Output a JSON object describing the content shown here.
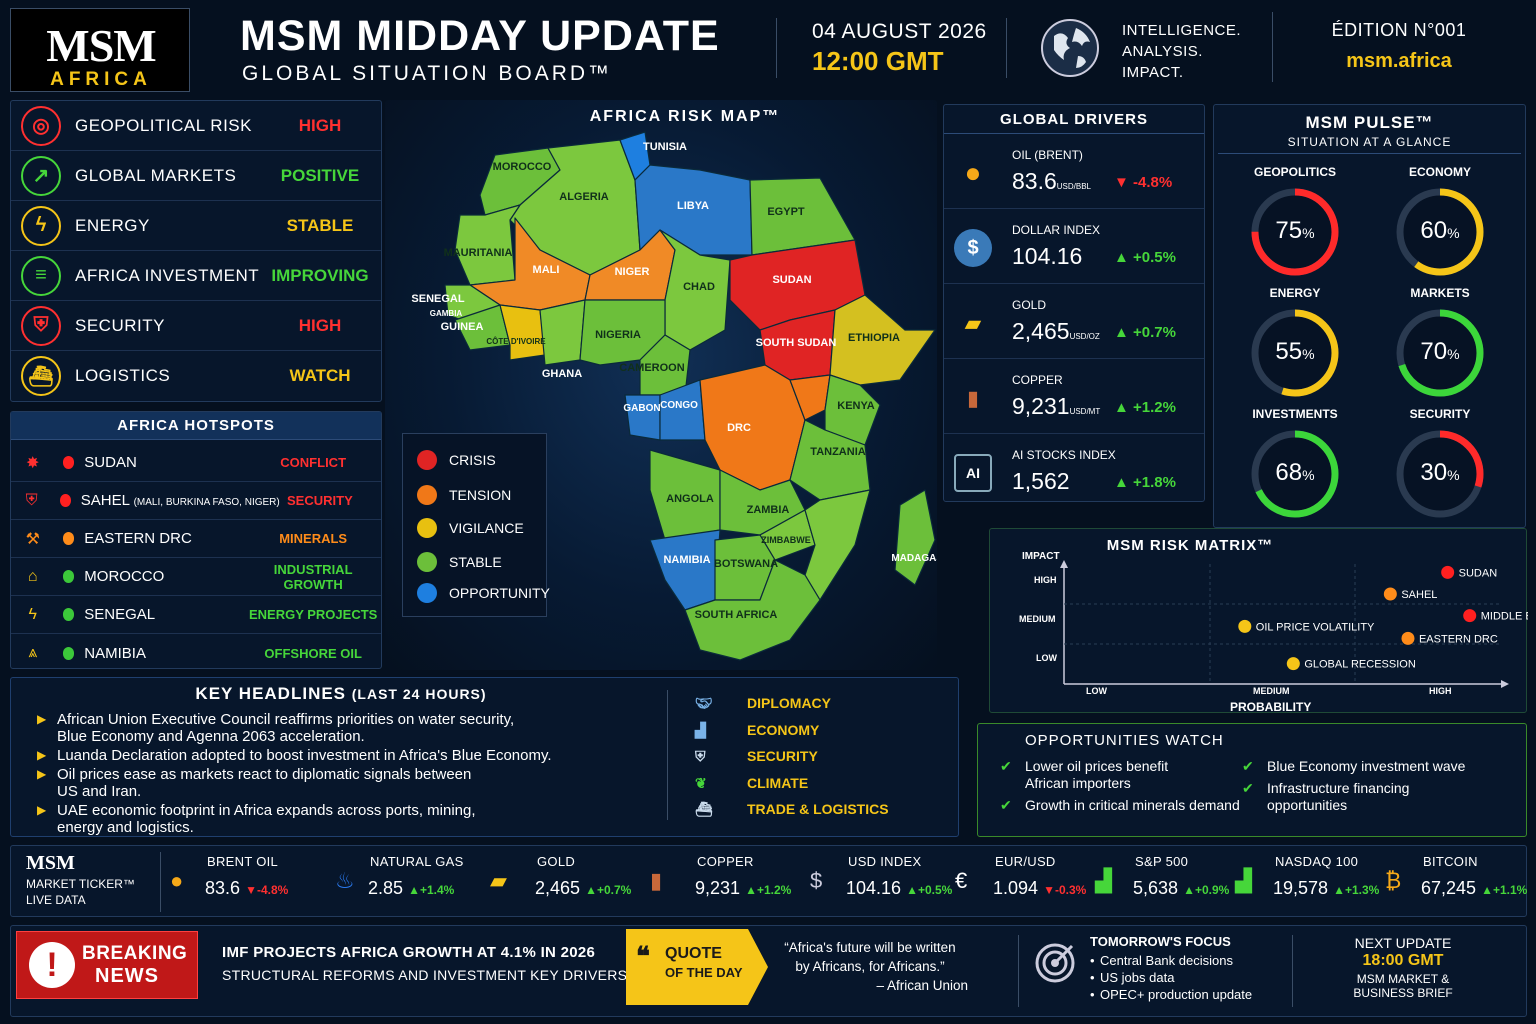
{
  "header": {
    "logo_main": "MSM",
    "logo_sub": "AFRICA",
    "title": "MSM MIDDAY UPDATE",
    "subtitle": "GLOBAL SITUATION BOARD™",
    "date": "04 AUGUST 2026",
    "time": "12:00 GMT",
    "tagline": [
      "INTELLIGENCE.",
      "ANALYSIS.",
      "IMPACT."
    ],
    "edition": "ÉDITION N°001",
    "site": "msm.africa"
  },
  "status_board": [
    {
      "label": "GEOPOLITICAL RISK",
      "value": "HIGH",
      "color": "#ff3030",
      "icon": "globe-icon"
    },
    {
      "label": "GLOBAL MARKETS",
      "value": "POSITIVE",
      "color": "#46d63a",
      "icon": "trend-icon"
    },
    {
      "label": "ENERGY",
      "value": "STABLE",
      "color": "#f5c518",
      "icon": "lightning-icon"
    },
    {
      "label": "AFRICA INVESTMENT",
      "value": "IMPROVING",
      "color": "#46d63a",
      "icon": "coins-icon"
    },
    {
      "label": "SECURITY",
      "value": "HIGH",
      "color": "#ff3030",
      "icon": "shield-icon"
    },
    {
      "label": "LOGISTICS",
      "value": "WATCH",
      "color": "#f5c518",
      "icon": "ship-icon"
    }
  ],
  "hotspots": {
    "title": "AFRICA HOTSPOTS",
    "items": [
      {
        "name": "SUDAN",
        "note": "",
        "tag": "CONFLICT",
        "color": "#ff3030",
        "icon": "explosion-icon"
      },
      {
        "name": "SAHEL",
        "note": "(MALI, BURKINA FASO, NIGER)",
        "tag": "SECURITY",
        "color": "#ff3030",
        "icon": "shield-icon"
      },
      {
        "name": "EASTERN DRC",
        "note": "",
        "tag": "MINERALS",
        "color": "#ff8c1a",
        "icon": "pickaxe-icon"
      },
      {
        "name": "MOROCCO",
        "note": "",
        "tag": "INDUSTRIAL GROWTH",
        "color": "#46d63a",
        "icon": "factory-icon"
      },
      {
        "name": "SENEGAL",
        "note": "",
        "tag": "ENERGY PROJECTS",
        "color": "#46d63a",
        "icon": "lightning-icon"
      },
      {
        "name": "NAMIBIA",
        "note": "",
        "tag": "OFFSHORE OIL",
        "color": "#46d63a",
        "icon": "oil-rig-icon"
      }
    ]
  },
  "map": {
    "title": "AFRICA RISK MAP™",
    "countries": [
      "TUNISIA",
      "MOROCCO",
      "ALGERIA",
      "LIBYA",
      "EGYPT",
      "MAURITANIA",
      "MALI",
      "NIGER",
      "CHAD",
      "SUDAN",
      "SENEGAL",
      "GAMBIA",
      "GUINEA",
      "CÔTE D'IVOIRE",
      "NIGERIA",
      "ETHIOPIA",
      "SOUTH SUDAN",
      "GHANA",
      "CAMEROON",
      "GABON",
      "CONGO",
      "DRC",
      "KENYA",
      "TANZANIA",
      "ANGOLA",
      "ZAMBIA",
      "ZIMBABWE",
      "NAMIBIA",
      "BOTSWANA",
      "MADAGASCAR",
      "SOUTH AFRICA"
    ],
    "legend": [
      {
        "label": "CRISIS",
        "color": "#e02424"
      },
      {
        "label": "TENSION",
        "color": "#f07818"
      },
      {
        "label": "VIGILANCE",
        "color": "#e8c010"
      },
      {
        "label": "STABLE",
        "color": "#6cbf3a"
      },
      {
        "label": "OPPORTUNITY",
        "color": "#1e7fe0"
      }
    ]
  },
  "drivers": {
    "title": "GLOBAL DRIVERS",
    "items": [
      {
        "name": "OIL (BRENT)",
        "value": "83.6",
        "unit": "USD/BBL",
        "change": "-4.8%",
        "dir": "down",
        "icon": "oil-drop-icon"
      },
      {
        "name": "DOLLAR INDEX",
        "value": "104.16",
        "unit": "",
        "change": "+0.5%",
        "dir": "up",
        "icon": "dollar-icon"
      },
      {
        "name": "GOLD",
        "value": "2,465",
        "unit": "USD/OZ",
        "change": "+0.7%",
        "dir": "up",
        "icon": "gold-bars-icon"
      },
      {
        "name": "COPPER",
        "value": "9,231",
        "unit": "USD/MT",
        "change": "+1.2%",
        "dir": "up",
        "icon": "copper-icon"
      },
      {
        "name": "AI STOCKS INDEX",
        "value": "1,562",
        "unit": "",
        "change": "+1.8%",
        "dir": "up",
        "icon": "ai-chip-icon"
      }
    ]
  },
  "pulse": {
    "title": "MSM PULSE™",
    "subtitle": "SITUATION AT A GLANCE",
    "gauges": [
      {
        "label": "GEOPOLITICS",
        "value": 75,
        "color": "#ff2a2a"
      },
      {
        "label": "ECONOMY",
        "value": 60,
        "color": "#f5c518"
      },
      {
        "label": "ENERGY",
        "value": 55,
        "color": "#f5c518"
      },
      {
        "label": "MARKETS",
        "value": 70,
        "color": "#3cd63a"
      },
      {
        "label": "INVESTMENTS",
        "value": 68,
        "color": "#3cd63a"
      },
      {
        "label": "SECURITY",
        "value": 30,
        "color": "#ff2a2a"
      }
    ]
  },
  "matrix": {
    "title": "MSM RISK MATRIX™",
    "ylabel": "IMPACT",
    "xlabel": "PROBABILITY",
    "yticks": [
      "HIGH",
      "MEDIUM",
      "LOW"
    ],
    "xticks": [
      "LOW",
      "MEDIUM",
      "HIGH"
    ],
    "points": [
      {
        "label": "SUDAN",
        "x": 0.87,
        "y": 0.93,
        "color": "#ff2020"
      },
      {
        "label": "SAHEL",
        "x": 0.74,
        "y": 0.75,
        "color": "#ff8c1a"
      },
      {
        "label": "MIDDLE EAST",
        "x": 0.92,
        "y": 0.57,
        "color": "#ff2020"
      },
      {
        "label": "OIL PRICE VOLATILITY",
        "x": 0.41,
        "y": 0.48,
        "color": "#f5c518"
      },
      {
        "label": "EASTERN DRC",
        "x": 0.78,
        "y": 0.38,
        "color": "#ff8c1a"
      },
      {
        "label": "GLOBAL RECESSION",
        "x": 0.52,
        "y": 0.17,
        "color": "#f5c518"
      }
    ]
  },
  "headlines": {
    "title": "KEY HEADLINES",
    "title_note": "(LAST 24 HOURS)",
    "items": [
      [
        "African Union Executive Council reaffirms priorities on water security,",
        "Blue Economy and Agenna 2063 acceleration."
      ],
      [
        "Luanda Declaration adopted to boost investment in Africa's Blue Economy."
      ],
      [
        "Oil prices ease as markets react to diplomatic signals between",
        "US and Iran."
      ],
      [
        "UAE economic footprint in Africa expands across ports, mining,",
        "energy and logistics."
      ]
    ],
    "categories": [
      {
        "label": "DIPLOMACY",
        "icon": "handshake-icon"
      },
      {
        "label": "ECONOMY",
        "icon": "chart-icon"
      },
      {
        "label": "SECURITY",
        "icon": "shield-icon"
      },
      {
        "label": "CLIMATE",
        "icon": "leaf-icon"
      },
      {
        "label": "TRADE & LOGISTICS",
        "icon": "ship-icon"
      }
    ]
  },
  "opportunities": {
    "title": "OPPORTUNITIES WATCH",
    "left": [
      [
        "Lower oil prices benefit",
        "African importers"
      ],
      [
        "Growth in critical minerals demand"
      ]
    ],
    "right": [
      [
        "Blue Economy investment wave"
      ],
      [
        "Infrastructure financing",
        "opportunities"
      ]
    ]
  },
  "ticker": {
    "brand": "MSM",
    "label": "MARKET TICKER™",
    "sub": "LIVE DATA",
    "items": [
      {
        "name": "BRENT OIL",
        "value": "83.6",
        "change": "-4.8%",
        "dir": "down",
        "icon": "oil-drop-icon"
      },
      {
        "name": "NATURAL GAS",
        "value": "2.85",
        "change": "+1.4%",
        "dir": "up",
        "icon": "flame-icon"
      },
      {
        "name": "GOLD",
        "value": "2,465",
        "change": "+0.7%",
        "dir": "up",
        "icon": "gold-bars-icon"
      },
      {
        "name": "COPPER",
        "value": "9,231",
        "change": "+1.2%",
        "dir": "up",
        "icon": "copper-icon"
      },
      {
        "name": "USD INDEX",
        "value": "104.16",
        "change": "+0.5%",
        "dir": "up",
        "icon": "dollar-icon"
      },
      {
        "name": "EUR/USD",
        "value": "1.094",
        "change": "-0.3%",
        "dir": "down",
        "icon": "euro-icon"
      },
      {
        "name": "S&P 500",
        "value": "5,638",
        "change": "+0.9%",
        "dir": "up",
        "icon": "bars-icon"
      },
      {
        "name": "NASDAQ 100",
        "value": "19,578",
        "change": "+1.3%",
        "dir": "up",
        "icon": "bars-icon"
      },
      {
        "name": "BITCOIN",
        "value": "67,245",
        "change": "+1.1%",
        "dir": "up",
        "icon": "bitcoin-icon"
      }
    ]
  },
  "footer": {
    "breaking_label": [
      "BREAKING",
      "NEWS"
    ],
    "breaking_lines": [
      "IMF PROJECTS AFRICA GROWTH AT 4.1% IN 2026",
      "STRUCTURAL REFORMS AND INVESTMENT KEY DRIVERS"
    ],
    "quote_label": [
      "QUOTE",
      "OF THE DAY"
    ],
    "quote_lines": [
      "“Africa's future will be written",
      "by Africans, for Africans.”"
    ],
    "quote_author": "– African Union",
    "focus_title": "TOMORROW'S FOCUS",
    "focus_items": [
      "Central Bank decisions",
      "US jobs data",
      "OPEC+ production update"
    ],
    "next_title": "NEXT UPDATE",
    "next_time": "18:00 GMT",
    "next_sub": [
      "MSM MARKET &",
      "BUSINESS BRIEF"
    ]
  },
  "colors": {
    "accent": "#f5c518",
    "up": "#46d63a",
    "down": "#ff3030",
    "panel_border": "#223a5c"
  }
}
